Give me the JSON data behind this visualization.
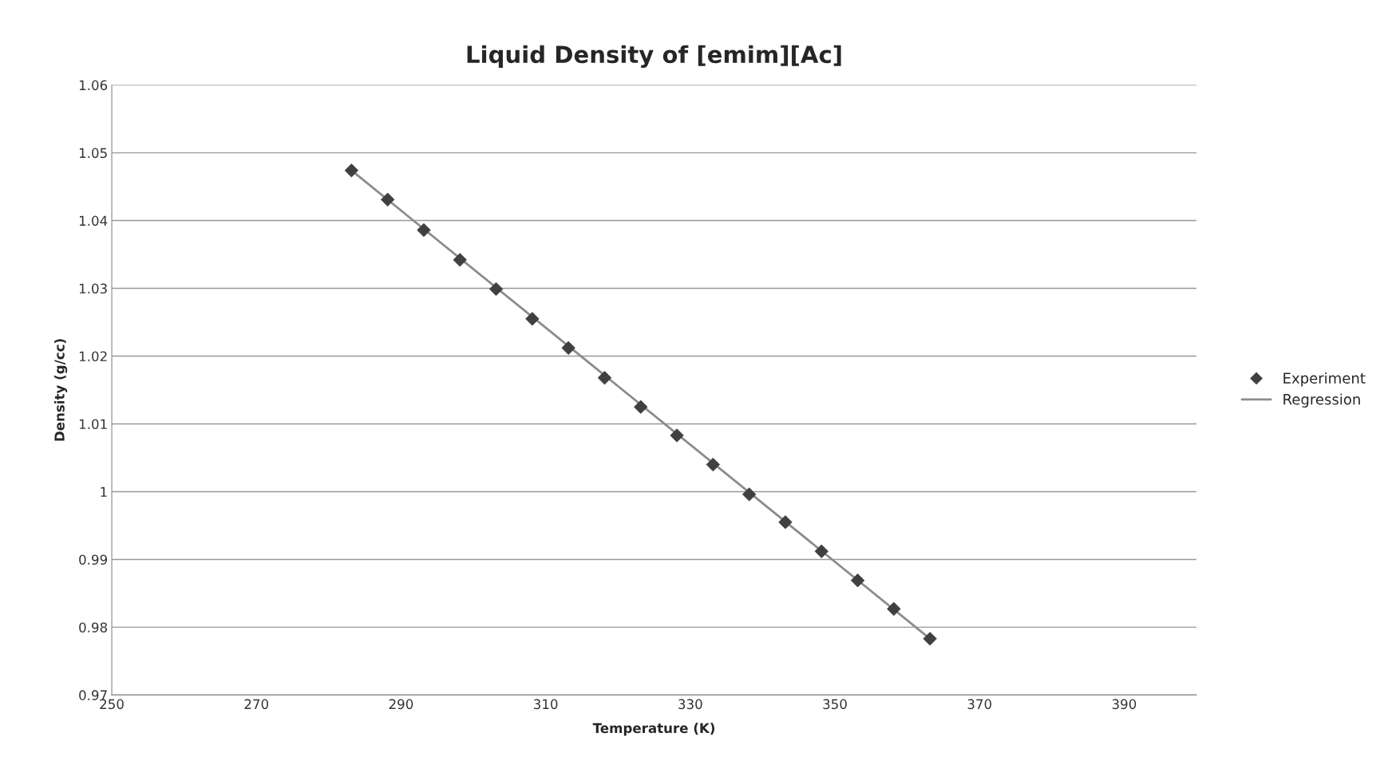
{
  "chart_data": {
    "type": "scatter",
    "title": "Liquid Density of [emim][Ac]",
    "xlabel": "Temperature (K)",
    "ylabel": "Density (g/cc)",
    "series": [
      {
        "name": "Experiment",
        "color": "#404040",
        "marker": "diamond",
        "x": [
          283.15,
          288.15,
          293.15,
          298.15,
          303.15,
          308.15,
          313.15,
          318.15,
          323.15,
          328.15,
          333.15,
          338.15,
          343.15,
          348.15,
          353.15,
          358.15,
          363.15
        ],
        "values": [
          1.0474,
          1.0431,
          1.0386,
          1.0342,
          1.0299,
          1.0255,
          1.0212,
          1.0168,
          1.0125,
          1.0083,
          1.004,
          0.9996,
          0.9955,
          0.9912,
          0.9869,
          0.9827,
          0.9783
        ]
      },
      {
        "name": "Regression",
        "type": "line",
        "color": "#8c8c8c",
        "marker": "none",
        "line_style": "solid",
        "x": [
          283.15,
          363.15
        ],
        "values": [
          1.0474,
          0.9783
        ]
      }
    ],
    "xlim": [
      250,
      400
    ],
    "xticks": [
      250,
      270,
      290,
      310,
      330,
      350,
      370,
      390
    ],
    "ylim": [
      0.97,
      1.06
    ],
    "yticks": [
      0.97,
      0.98,
      0.99,
      1,
      1.01,
      1.02,
      1.03,
      1.04,
      1.05,
      1.06
    ],
    "grid": "y",
    "legend": "right"
  }
}
